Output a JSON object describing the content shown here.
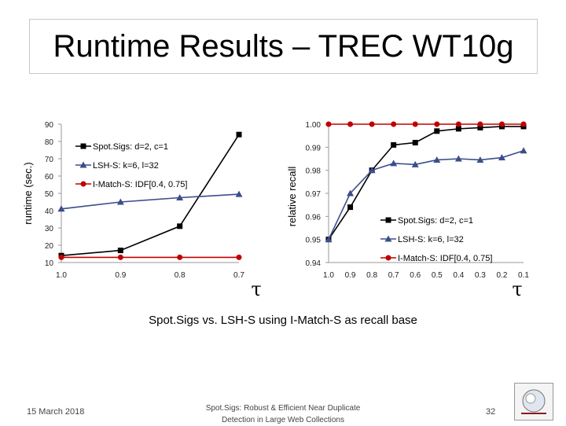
{
  "page": {
    "title": "Runtime Results – TREC WT10g",
    "caption": "Spot.Sigs vs. LSH-S using I-Match-S as recall base",
    "footer_date": "15 March 2018",
    "footer_center_line1": "Spot.Sigs: Robust & Efficient Near Duplicate",
    "footer_center_line2": "Detection in Large Web Collections",
    "page_number": "32"
  },
  "chart_data": [
    {
      "type": "line",
      "ylabel": "runtime (sec.)",
      "xlabel": "τ",
      "categories": [
        "1.0",
        "0.9",
        "0.8",
        "0.7"
      ],
      "ylim": [
        10,
        90
      ],
      "yticks": [
        "10",
        "20",
        "30",
        "40",
        "50",
        "60",
        "70",
        "80",
        "90"
      ],
      "grid": false,
      "legend": "top-left",
      "series": [
        {
          "name": "Spot.Sigs: d=2, c=1",
          "marker": "square",
          "color": "#000000",
          "values": [
            14,
            17,
            31,
            84
          ]
        },
        {
          "name": "LSH-S: k=6, l=32",
          "marker": "triangle",
          "color": "#3b4e8a",
          "values": [
            41,
            45,
            47.5,
            49.5
          ]
        },
        {
          "name": "I-Match-S: IDF[0.4, 0.75]",
          "marker": "circle",
          "color": "#c00000",
          "values": [
            13,
            13,
            13,
            13
          ]
        }
      ]
    },
    {
      "type": "line",
      "ylabel": "relative recall",
      "xlabel": "τ",
      "categories": [
        "1.0",
        "0.9",
        "0.8",
        "0.7",
        "0.6",
        "0.5",
        "0.4",
        "0.3",
        "0.2",
        "0.1"
      ],
      "ylim": [
        0.94,
        1.0
      ],
      "yticks": [
        "0.94",
        "0.95",
        "0.96",
        "0.97",
        "0.98",
        "0.99",
        "1.00"
      ],
      "grid": false,
      "legend": "bottom-right",
      "series": [
        {
          "name": "Spot.Sigs: d=2, c=1",
          "marker": "square",
          "color": "#000000",
          "values": [
            0.95,
            0.964,
            0.98,
            0.991,
            0.992,
            0.997,
            0.998,
            0.9985,
            0.999,
            0.999
          ]
        },
        {
          "name": "LSH-S: k=6, l=32",
          "marker": "triangle",
          "color": "#3b4e8a",
          "values": [
            0.95,
            0.97,
            0.98,
            0.983,
            0.9825,
            0.9845,
            0.985,
            0.9845,
            0.9855,
            0.9885
          ]
        },
        {
          "name": "I-Match-S: IDF[0.4, 0.75]",
          "marker": "circle",
          "color": "#c00000",
          "values": [
            1.0,
            1.0,
            1.0,
            1.0,
            1.0,
            1.0,
            1.0,
            1.0,
            1.0,
            1.0
          ]
        }
      ]
    }
  ]
}
